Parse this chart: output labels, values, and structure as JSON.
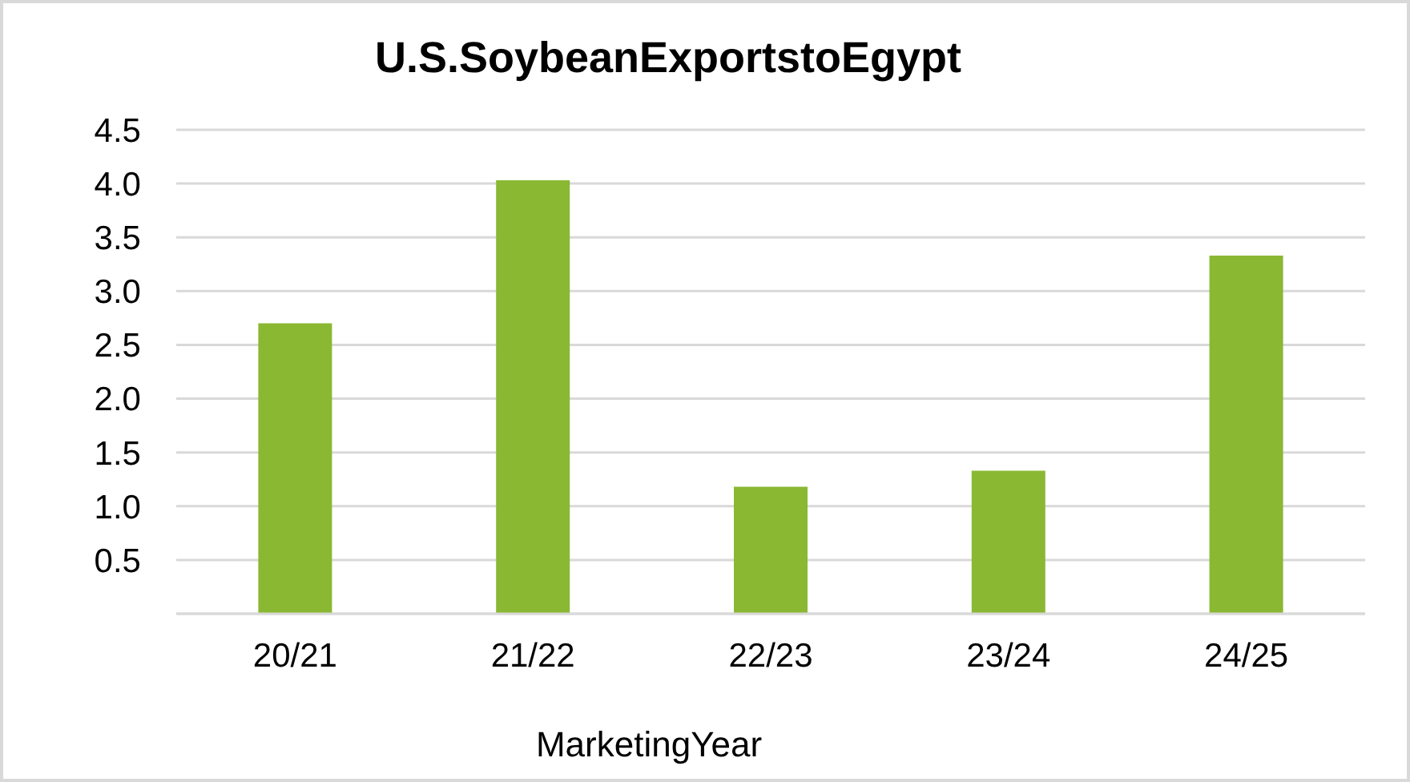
{
  "chart_data": {
    "type": "bar",
    "title": "U.S.SoybeanExportstoEgypt",
    "xlabel": "MarketingYear",
    "categories": [
      "20/21",
      "21/22",
      "22/23",
      "23/24",
      "24/25"
    ],
    "values": [
      2.7,
      4.03,
      1.18,
      1.33,
      3.33
    ],
    "color": "#8ab833",
    "ylim": [
      0,
      4.5
    ],
    "yticks": [
      {
        "value": 0,
        "label": null
      },
      0.5,
      {
        "value": 1,
        "label": "1.0"
      },
      1.5,
      {
        "value": 2,
        "label": "2.0"
      },
      2.5,
      {
        "value": 3,
        "label": "3.0"
      },
      3.5,
      {
        "value": 4,
        "label": "4.0"
      },
      4.5
    ],
    "grid": "y"
  }
}
